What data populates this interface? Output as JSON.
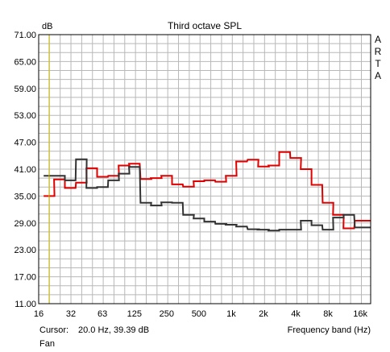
{
  "chart_data": {
    "type": "line",
    "title": "Third octave SPL",
    "ylabel": "dB",
    "xlabel": "Frequency band (Hz)",
    "brand": "ARTA",
    "x_scale": "log",
    "xlim": [
      16,
      20000
    ],
    "ylim": [
      11,
      71
    ],
    "y_ticks": [
      "71.00",
      "65.00",
      "59.00",
      "53.00",
      "47.00",
      "41.00",
      "35.00",
      "29.00",
      "23.00",
      "17.00",
      "11.00"
    ],
    "x_ticks": [
      {
        "label": "16",
        "value": 16
      },
      {
        "label": "32",
        "value": 32
      },
      {
        "label": "63",
        "value": 63
      },
      {
        "label": "125",
        "value": 125
      },
      {
        "label": "250",
        "value": 250
      },
      {
        "label": "500",
        "value": 500
      },
      {
        "label": "1k",
        "value": 1000
      },
      {
        "label": "2k",
        "value": 2000
      },
      {
        "label": "4k",
        "value": 4000
      },
      {
        "label": "8k",
        "value": 8000
      },
      {
        "label": "16k",
        "value": 16000
      }
    ],
    "grid": true,
    "cursor": {
      "label": "Cursor:",
      "readout": "20.0 Hz, 39.39 dB",
      "x": 20
    },
    "footer_label": "Fan",
    "bands": [
      20,
      25,
      31.5,
      40,
      50,
      63,
      80,
      100,
      125,
      160,
      200,
      250,
      315,
      400,
      500,
      630,
      800,
      1000,
      1250,
      1600,
      2000,
      2500,
      3150,
      4000,
      5000,
      6300,
      8000,
      10000,
      12500,
      16000,
      20000
    ],
    "series": [
      {
        "color": "#e00000",
        "values": [
          35.0,
          38.7,
          36.8,
          38.0,
          41.2,
          39.3,
          39.5,
          41.8,
          42.2,
          38.8,
          39.0,
          39.5,
          37.6,
          37.1,
          38.3,
          38.5,
          38.2,
          39.5,
          42.7,
          43.1,
          41.6,
          41.8,
          44.8,
          43.5,
          41.0,
          37.5,
          33.5,
          30.8,
          27.8,
          29.5,
          29.5
        ]
      },
      {
        "color": "#333333",
        "values": [
          39.5,
          39.5,
          38.5,
          43.2,
          36.8,
          37.0,
          38.5,
          40.0,
          41.5,
          33.5,
          32.9,
          33.6,
          33.5,
          30.8,
          30.0,
          29.3,
          28.8,
          28.6,
          28.2,
          27.6,
          27.5,
          27.3,
          27.5,
          27.5,
          29.5,
          28.5,
          27.5,
          30.2,
          30.8,
          28.0,
          28.0
        ]
      }
    ]
  }
}
